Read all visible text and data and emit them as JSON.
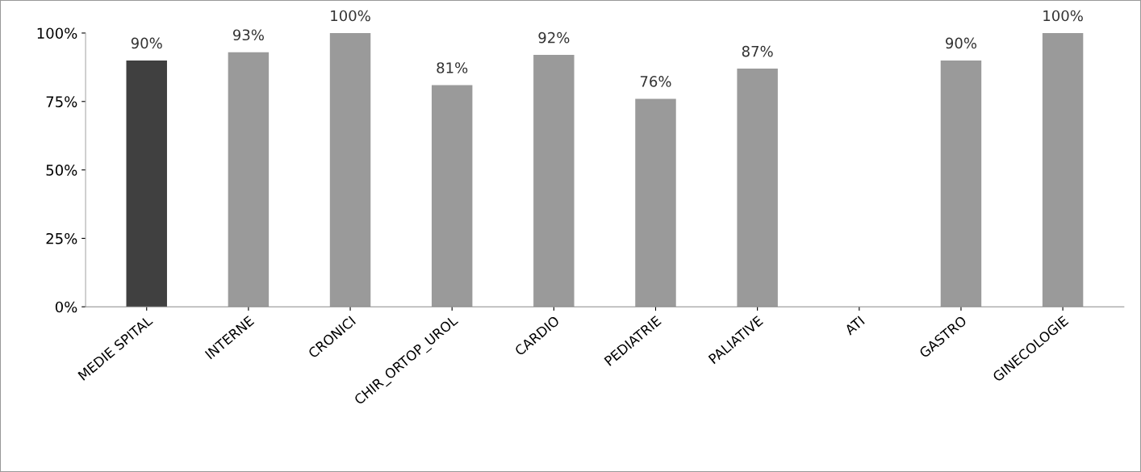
{
  "chart_data": {
    "type": "bar",
    "categories": [
      "MEDIE SPITAL",
      "INTERNE",
      "CRONICI",
      "CHIR_ORTOP_UROL",
      "CARDIO",
      "PEDIATRIE",
      "PALIATIVE",
      "ATI",
      "GASTRO",
      "GINECOLOGIE"
    ],
    "values": [
      90,
      93,
      100,
      81,
      92,
      76,
      87,
      null,
      90,
      100
    ],
    "value_labels": [
      "90%",
      "93%",
      "100%",
      "81%",
      "92%",
      "76%",
      "87%",
      null,
      "90%",
      "100%"
    ],
    "colors": [
      "#404040",
      "#9a9a9a",
      "#9a9a9a",
      "#9a9a9a",
      "#9a9a9a",
      "#9a9a9a",
      "#9a9a9a",
      "#9a9a9a",
      "#9a9a9a",
      "#9a9a9a"
    ],
    "ylim": [
      0,
      100
    ],
    "yticks": [
      {
        "value": 0,
        "label": "0%"
      },
      {
        "value": 25,
        "label": "25%"
      },
      {
        "value": 50,
        "label": "50%"
      },
      {
        "value": 75,
        "label": "75%"
      },
      {
        "value": 100,
        "label": "100%"
      }
    ],
    "grid": false,
    "legend": false
  }
}
